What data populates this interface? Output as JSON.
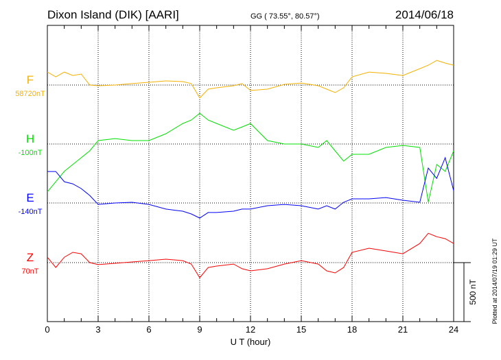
{
  "header": {
    "station": "Dixon Island (DIK)  [AARI]",
    "coords": "GG ( 73.55°,  80.57°)",
    "date": "2014/06/18"
  },
  "plotted_note": "Plotted at 2014/07/19 01:29 UT",
  "chart_data": {
    "type": "line",
    "title": "Dixon Island (DIK)  [AARI]",
    "xlabel": "U T (hour)",
    "xlim": [
      0,
      24
    ],
    "xticks": [
      "0",
      "3",
      "6",
      "9",
      "12",
      "15",
      "18",
      "21",
      "24"
    ],
    "scale_bar": "500 nT",
    "scale_bar_nT": 500,
    "grid": true,
    "x": [
      0,
      0.5,
      1,
      1.5,
      2,
      2.5,
      3,
      4,
      5,
      6,
      7,
      8,
      8.5,
      9,
      9.5,
      10,
      11,
      11.5,
      12,
      13,
      14,
      15,
      16,
      16.5,
      17,
      17.5,
      18,
      19,
      20,
      21,
      22,
      22.5,
      23,
      23.5,
      24
    ],
    "series": [
      {
        "name": "F",
        "baseline_label": "58720nT",
        "color": "#f5b000",
        "values": [
          110,
          70,
          110,
          81,
          93,
          0,
          -6,
          0,
          12,
          23,
          35,
          29,
          12,
          -110,
          -35,
          -23,
          -6,
          12,
          -46,
          -35,
          6,
          17,
          -6,
          -35,
          -64,
          -23,
          70,
          110,
          99,
          81,
          139,
          168,
          209,
          186,
          168
        ]
      },
      {
        "name": "H",
        "baseline_label": "-100nT",
        "color": "#00e000",
        "values": [
          -406,
          -319,
          -232,
          -174,
          -116,
          -58,
          29,
          46,
          29,
          29,
          87,
          174,
          203,
          261,
          203,
          174,
          116,
          145,
          174,
          29,
          0,
          0,
          -29,
          29,
          -58,
          -145,
          -87,
          -87,
          -29,
          -12,
          -29,
          -493,
          -174,
          -232,
          -58
        ]
      },
      {
        "name": "E",
        "baseline_label": "-140nT",
        "color": "#0000ff",
        "values": [
          267,
          267,
          180,
          162,
          122,
          64,
          -12,
          0,
          6,
          -12,
          -52,
          -70,
          -93,
          -128,
          -81,
          -81,
          -70,
          -52,
          -52,
          -23,
          -12,
          -23,
          -52,
          -23,
          -52,
          6,
          35,
          35,
          46,
          23,
          6,
          296,
          209,
          383,
          104
        ]
      },
      {
        "name": "Z",
        "baseline_label": "70nT",
        "color": "#ff0000",
        "values": [
          46,
          -41,
          46,
          87,
          75,
          0,
          -17,
          -6,
          6,
          17,
          29,
          17,
          -12,
          -128,
          -41,
          -29,
          -12,
          -52,
          -70,
          -52,
          -12,
          17,
          -12,
          -70,
          -87,
          -41,
          87,
          122,
          99,
          75,
          162,
          249,
          220,
          203,
          162
        ]
      }
    ]
  }
}
